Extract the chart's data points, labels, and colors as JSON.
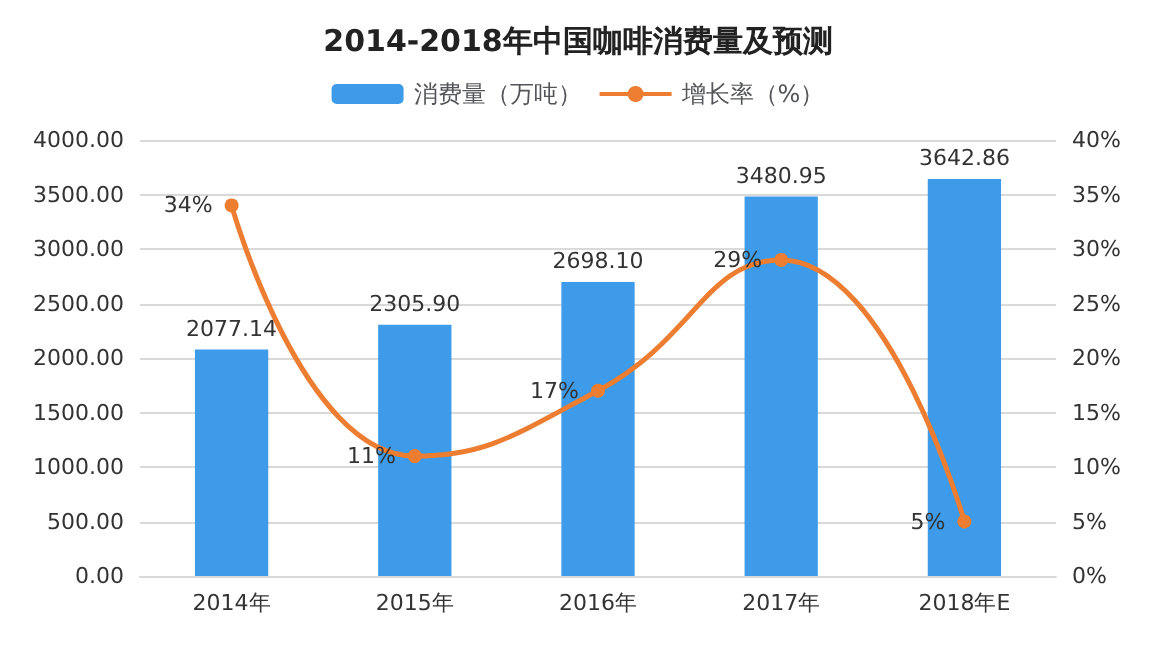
{
  "chart_data": {
    "type": "bar",
    "title": "2014-2018年中国咖啡消费量及预测",
    "categories": [
      "2014年",
      "2015年",
      "2016年",
      "2017年",
      "2018年E"
    ],
    "series": [
      {
        "name": "消费量（万吨）",
        "color": "#3d9be9",
        "values": [
          2077.14,
          2305.9,
          2698.1,
          3480.95,
          3642.86
        ],
        "value_labels": [
          "2077.14",
          "2305.90",
          "2698.10",
          "3480.95",
          "3642.86"
        ]
      },
      {
        "name": "增长率（%）",
        "type": "line",
        "axis": "y2",
        "color": "#ed7d31",
        "values": [
          34,
          11,
          17,
          29,
          5
        ],
        "value_labels": [
          "34%",
          "11%",
          "17%",
          "29%",
          "5%"
        ]
      }
    ],
    "ylim": [
      0,
      4000
    ],
    "yticks": [
      {
        "value": 0,
        "label": "0.00"
      },
      {
        "value": 500,
        "label": "500.00"
      },
      {
        "value": 1000,
        "label": "1000.00"
      },
      {
        "value": 1500,
        "label": "1500.00"
      },
      {
        "value": 2000,
        "label": "2000.00"
      },
      {
        "value": 2500,
        "label": "2500.00"
      },
      {
        "value": 3000,
        "label": "3000.00"
      },
      {
        "value": 3500,
        "label": "3500.00"
      },
      {
        "value": 4000,
        "label": "4000.00"
      }
    ],
    "y2lim": [
      0,
      40
    ],
    "y2ticks": [
      {
        "value": 0,
        "label": "0%"
      },
      {
        "value": 5,
        "label": "5%"
      },
      {
        "value": 10,
        "label": "10%"
      },
      {
        "value": 15,
        "label": "15%"
      },
      {
        "value": 20,
        "label": "20%"
      },
      {
        "value": 25,
        "label": "25%"
      },
      {
        "value": 30,
        "label": "30%"
      },
      {
        "value": 35,
        "label": "35%"
      },
      {
        "value": 40,
        "label": "40%"
      }
    ],
    "grid": "y",
    "legend": "top",
    "marker": "circle",
    "line_style": "solid"
  }
}
